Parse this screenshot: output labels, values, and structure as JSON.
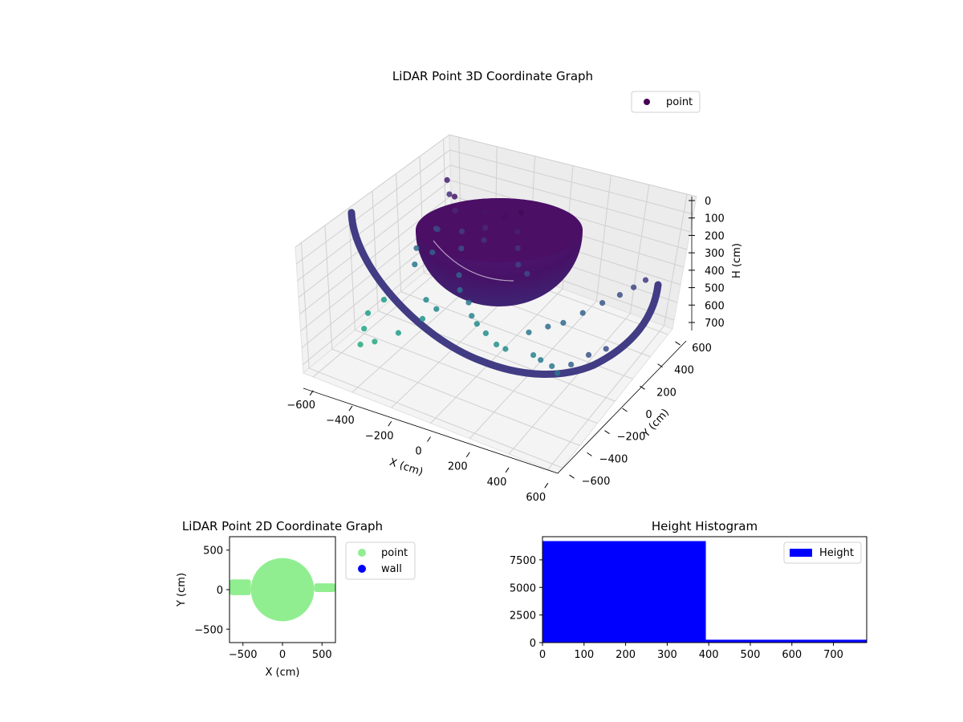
{
  "chart_data": [
    {
      "type": "scatter3d",
      "title": "LiDAR Point 3D Coordinate Graph",
      "xlabel": "X (cm)",
      "ylabel": "Y (cm)",
      "zlabel": "H (cm)",
      "xlim": [
        -650,
        650
      ],
      "ylim": [
        -650,
        650
      ],
      "zlim": [
        0,
        750
      ],
      "z_inverted": true,
      "x_ticks": [
        "−600",
        "−400",
        "−200",
        "0",
        "200",
        "400",
        "600"
      ],
      "y_ticks": [
        "−600",
        "−400",
        "−200",
        "0",
        "200",
        "400",
        "600"
      ],
      "z_ticks": [
        "0",
        "100",
        "200",
        "300",
        "400",
        "500",
        "600",
        "700"
      ],
      "legend": {
        "placement": "upper-right",
        "entries": [
          "point"
        ]
      },
      "colormap": "viridis",
      "series": [
        {
          "name": "point",
          "components": [
            {
              "shape": "hemisphere",
              "center": [
                0,
                0
              ],
              "radius": 400,
              "height_range": [
                0,
                400
              ],
              "color": "#4a1166"
            },
            {
              "shape": "arc",
              "radius": 640,
              "angle_range_deg": [
                -180,
                0
              ],
              "height": 450,
              "color": "#433a84"
            }
          ],
          "scattered_points": [
            [
              -650,
              620,
              280
            ],
            [
              -600,
              560,
              320
            ],
            [
              -520,
              480,
              260
            ],
            [
              -480,
              420,
              300
            ],
            [
              -560,
              380,
              420
            ],
            [
              -520,
              330,
              380
            ],
            [
              -620,
              300,
              520
            ],
            [
              -580,
              220,
              560
            ],
            [
              -500,
              250,
              470
            ],
            [
              -400,
              350,
              360
            ],
            [
              -360,
              280,
              410
            ],
            [
              -320,
              420,
              250
            ],
            [
              -280,
              360,
              300
            ],
            [
              -250,
              300,
              330
            ],
            [
              -200,
              400,
              230
            ],
            [
              -150,
              460,
              220
            ],
            [
              -120,
              380,
              280
            ],
            [
              -80,
              320,
              330
            ],
            [
              -40,
              260,
              380
            ],
            [
              20,
              240,
              400
            ],
            [
              -300,
              160,
              480
            ],
            [
              -260,
              100,
              520
            ],
            [
              -200,
              80,
              560
            ],
            [
              -160,
              40,
              600
            ],
            [
              -120,
              20,
              620
            ],
            [
              -60,
              0,
              640
            ],
            [
              20,
              -40,
              650
            ],
            [
              80,
              -60,
              640
            ],
            [
              160,
              20,
              560
            ],
            [
              240,
              60,
              520
            ],
            [
              300,
              100,
              500
            ],
            [
              360,
              180,
              470
            ],
            [
              420,
              260,
              440
            ],
            [
              480,
              320,
              410
            ],
            [
              520,
              380,
              390
            ],
            [
              560,
              420,
              360
            ],
            [
              240,
              -80,
              600
            ],
            [
              300,
              -120,
              580
            ],
            [
              380,
              -160,
              560
            ],
            [
              440,
              -220,
              540
            ],
            [
              500,
              -200,
              480
            ],
            [
              560,
              -140,
              440
            ],
            [
              620,
              -80,
              420
            ],
            [
              -640,
              -100,
              700
            ],
            [
              -600,
              -200,
              720
            ],
            [
              -560,
              -300,
              740
            ],
            [
              -640,
              40,
              700
            ],
            [
              -520,
              -240,
              740
            ],
            [
              -440,
              -160,
              700
            ],
            [
              -380,
              -40,
              660
            ],
            [
              -420,
              60,
              620
            ],
            [
              -340,
              20,
              620
            ]
          ]
        }
      ]
    },
    {
      "type": "scatter",
      "title": "LiDAR Point 2D Coordinate Graph",
      "xlabel": "X (cm)",
      "ylabel": "Y (cm)",
      "xlim": [
        -670,
        670
      ],
      "ylim": [
        -670,
        670
      ],
      "x_ticks": [
        "−500",
        "0",
        "500"
      ],
      "y_ticks": [
        "500",
        "0",
        "−500"
      ],
      "legend": {
        "placement": "outside-right",
        "entries": [
          "point",
          "wall"
        ]
      },
      "series": [
        {
          "name": "point",
          "color": "#90ee90",
          "components": [
            {
              "shape": "disk",
              "center": [
                0,
                0
              ],
              "radius": 400
            },
            {
              "shape": "band",
              "x_range": [
                -670,
                -400
              ],
              "y_range": [
                -70,
                130
              ]
            },
            {
              "shape": "band",
              "x_range": [
                400,
                670
              ],
              "y_range": [
                -30,
                80
              ]
            }
          ]
        },
        {
          "name": "wall",
          "color": "#0000ff",
          "points": []
        }
      ]
    },
    {
      "type": "bar",
      "title": "Height Histogram",
      "xlim": [
        0,
        780
      ],
      "ylim": [
        0,
        9600
      ],
      "x_ticks": [
        "0",
        "100",
        "200",
        "300",
        "400",
        "500",
        "600",
        "700"
      ],
      "y_ticks": [
        "0",
        "2500",
        "5000",
        "7500"
      ],
      "legend": {
        "placement": "upper-right",
        "entries": [
          "Height"
        ]
      },
      "series": [
        {
          "name": "Height",
          "color": "#0000ff",
          "bins": [
            {
              "x0": 0,
              "x1": 393,
              "count": 9200
            },
            {
              "x0": 393,
              "x1": 780,
              "count": 260
            }
          ]
        }
      ]
    }
  ]
}
